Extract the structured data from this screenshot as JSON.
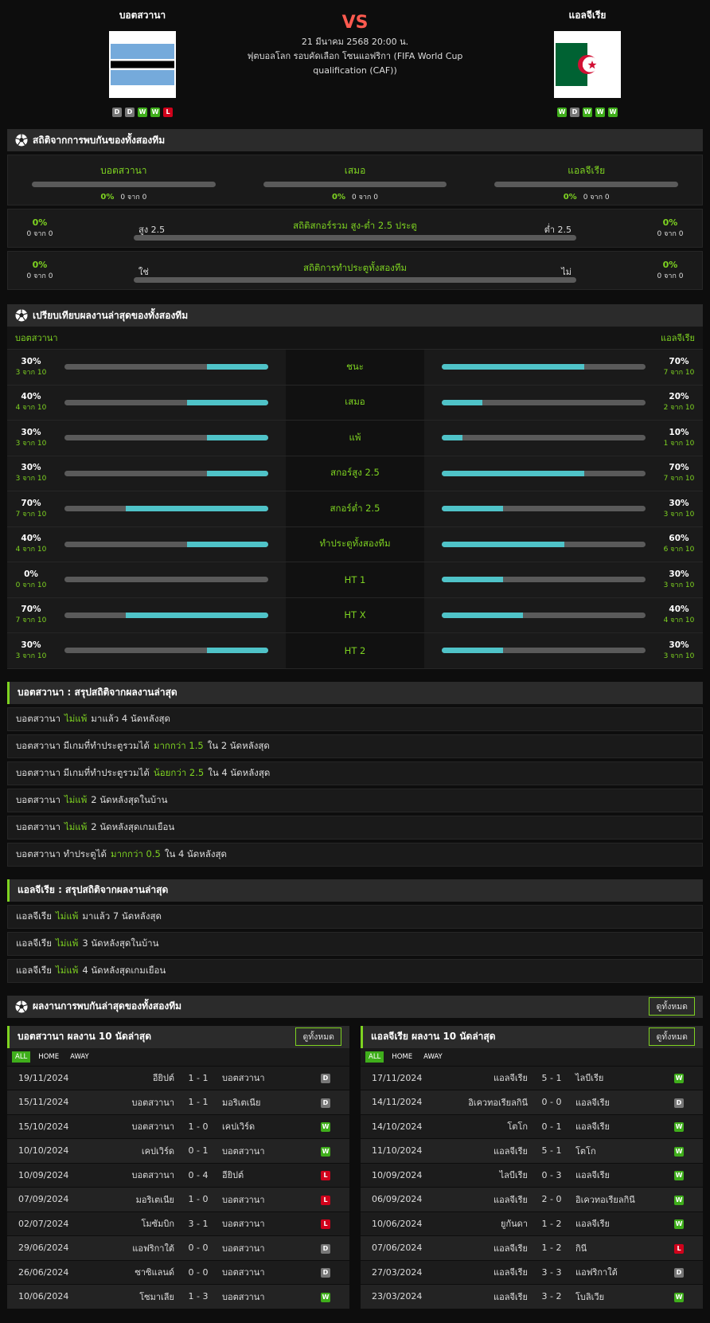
{
  "header": {
    "home": {
      "name": "บอตสวานา",
      "form": [
        "D",
        "D",
        "W",
        "W",
        "L"
      ]
    },
    "away": {
      "name": "แอลจีเรีย",
      "form": [
        "W",
        "D",
        "W",
        "W",
        "W"
      ]
    },
    "vs": "VS",
    "date": "21 มีนาคม 2568 20:00 น.",
    "competition": "ฟุตบอลโลก รอบคัดเลือก โซนแอฟริกา (FIFA World Cup qualification (CAF))"
  },
  "h2h": {
    "title": "สถิติจากการพบกันของทั้งสองทีม",
    "columns": [
      {
        "label": "บอตสวานา",
        "pct": "0%",
        "count": "0 จาก 0"
      },
      {
        "label": "เสมอ",
        "pct": "0%",
        "count": "0 จาก 0"
      },
      {
        "label": "แอลจีเรีย",
        "pct": "0%",
        "count": "0 จาก 0"
      }
    ],
    "rows": [
      {
        "title": "สถิติสกอร์รวม สูง-ต่ำ 2.5 ประตู",
        "left_label": "สูง 2.5",
        "right_label": "ต่ำ 2.5",
        "left_pct": "0%",
        "left_count": "0 จาก 0",
        "right_pct": "0%",
        "right_count": "0 จาก 0"
      },
      {
        "title": "สถิติการทำประตูทั้งสองทีม",
        "left_label": "ใช่",
        "right_label": "ไม่",
        "left_pct": "0%",
        "left_count": "0 จาก 0",
        "right_pct": "0%",
        "right_count": "0 จาก 0"
      }
    ]
  },
  "compare": {
    "title": "เปรียบเทียบผลงานล่าสุดของทั้งสองทีม",
    "home": "บอตสวานา",
    "away": "แอลจีเรีย",
    "rows": [
      {
        "label": "ชนะ",
        "home_pct": "30%",
        "home_count": "3 จาก 10",
        "away_pct": "70%",
        "away_count": "7 จาก 10"
      },
      {
        "label": "เสมอ",
        "home_pct": "40%",
        "home_count": "4 จาก 10",
        "away_pct": "20%",
        "away_count": "2 จาก 10"
      },
      {
        "label": "แพ้",
        "home_pct": "30%",
        "home_count": "3 จาก 10",
        "away_pct": "10%",
        "away_count": "1 จาก 10"
      },
      {
        "label": "สกอร์สูง 2.5",
        "home_pct": "30%",
        "home_count": "3 จาก 10",
        "away_pct": "70%",
        "away_count": "7 จาก 10"
      },
      {
        "label": "สกอร์ต่ำ 2.5",
        "home_pct": "70%",
        "home_count": "7 จาก 10",
        "away_pct": "30%",
        "away_count": "3 จาก 10"
      },
      {
        "label": "ทำประตูทั้งสองทีม",
        "home_pct": "40%",
        "home_count": "4 จาก 10",
        "away_pct": "60%",
        "away_count": "6 จาก 10"
      },
      {
        "label": "HT 1",
        "home_pct": "0%",
        "home_count": "0 จาก 10",
        "away_pct": "30%",
        "away_count": "3 จาก 10"
      },
      {
        "label": "HT X",
        "home_pct": "70%",
        "home_count": "7 จาก 10",
        "away_pct": "40%",
        "away_count": "4 จาก 10"
      },
      {
        "label": "HT 2",
        "home_pct": "30%",
        "home_count": "3 จาก 10",
        "away_pct": "30%",
        "away_count": "3 จาก 10"
      }
    ]
  },
  "summaries": [
    {
      "title": "บอตสวานา : สรุปสถิติจากผลงานล่าสุด",
      "items": [
        [
          "บอตสวานา",
          "ไม่แพ้",
          "มาแล้ว 4 นัดหลังสุด"
        ],
        [
          "บอตสวานา มีเกมที่ทำประตูรวมได้",
          "มากกว่า 1.5",
          "ใน 2 นัดหลังสุด"
        ],
        [
          "บอตสวานา มีเกมที่ทำประตูรวมได้",
          "น้อยกว่า 2.5",
          "ใน 4 นัดหลังสุด"
        ],
        [
          "บอตสวานา",
          "ไม่แพ้",
          "2 นัดหลังสุดในบ้าน"
        ],
        [
          "บอตสวานา",
          "ไม่แพ้",
          "2 นัดหลังสุดเกมเยือน"
        ],
        [
          "บอตสวานา ทำประตูได้",
          "มากกว่า 0.5",
          "ใน 4 นัดหลังสุด"
        ]
      ]
    },
    {
      "title": "แอลจีเรีย : สรุปสถิติจากผลงานล่าสุด",
      "items": [
        [
          "แอลจีเรีย",
          "ไม่แพ้",
          "มาแล้ว 7 นัดหลังสุด"
        ],
        [
          "แอลจีเรีย",
          "ไม่แพ้",
          "3 นัดหลังสุดในบ้าน"
        ],
        [
          "แอลจีเรีย",
          "ไม่แพ้",
          "4 นัดหลังสุดเกมเยือน"
        ]
      ]
    }
  ],
  "recent": {
    "title": "ผลงานการพบกันล่าสุดของทั้งสองทีม",
    "button": "ดูทั้งหมด"
  },
  "panels": [
    {
      "title": "บอตสวานา ผลงาน 10 นัดล่าสุด",
      "button": "ดูทั้งหมด",
      "tabs": [
        "ALL",
        "HOME",
        "AWAY"
      ],
      "matches": [
        [
          "19/11/2024",
          "อียิปต์",
          "1 - 1",
          "บอตสวานา",
          "D"
        ],
        [
          "15/11/2024",
          "บอตสวานา",
          "1 - 1",
          "มอริเตเนีย",
          "D"
        ],
        [
          "15/10/2024",
          "บอตสวานา",
          "1 - 0",
          "เคปเวิร์ด",
          "W"
        ],
        [
          "10/10/2024",
          "เคปเวิร์ด",
          "0 - 1",
          "บอตสวานา",
          "W"
        ],
        [
          "10/09/2024",
          "บอตสวานา",
          "0 - 4",
          "อียิปต์",
          "L"
        ],
        [
          "07/09/2024",
          "มอริเตเนีย",
          "1 - 0",
          "บอตสวานา",
          "L"
        ],
        [
          "02/07/2024",
          "โมซัมบิก",
          "3 - 1",
          "บอตสวานา",
          "L"
        ],
        [
          "29/06/2024",
          "แอฟริกาใต้",
          "0 - 0",
          "บอตสวานา",
          "D"
        ],
        [
          "26/06/2024",
          "ซาซิแลนด์",
          "0 - 0",
          "บอตสวานา",
          "D"
        ],
        [
          "10/06/2024",
          "โซมาเลีย",
          "1 - 3",
          "บอตสวานา",
          "W"
        ]
      ]
    },
    {
      "title": "แอลจีเรีย ผลงาน 10 นัดล่าสุด",
      "button": "ดูทั้งหมด",
      "tabs": [
        "ALL",
        "HOME",
        "AWAY"
      ],
      "matches": [
        [
          "17/11/2024",
          "แอลจีเรีย",
          "5 - 1",
          "ไลบีเรีย",
          "W"
        ],
        [
          "14/11/2024",
          "อิเควทอเรียลกินี",
          "0 - 0",
          "แอลจีเรีย",
          "D"
        ],
        [
          "14/10/2024",
          "โตโก",
          "0 - 1",
          "แอลจีเรีย",
          "W"
        ],
        [
          "11/10/2024",
          "แอลจีเรีย",
          "5 - 1",
          "โตโก",
          "W"
        ],
        [
          "10/09/2024",
          "ไลบีเรีย",
          "0 - 3",
          "แอลจีเรีย",
          "W"
        ],
        [
          "06/09/2024",
          "แอลจีเรีย",
          "2 - 0",
          "อิเควทอเรียลกินี",
          "W"
        ],
        [
          "10/06/2024",
          "ยูกันดา",
          "1 - 2",
          "แอลจีเรีย",
          "W"
        ],
        [
          "07/06/2024",
          "แอลจีเรีย",
          "1 - 2",
          "กินี",
          "L"
        ],
        [
          "27/03/2024",
          "แอลจีเรีย",
          "3 - 3",
          "แอฟริกาใต้",
          "D"
        ],
        [
          "23/03/2024",
          "แอลจีเรีย",
          "3 - 2",
          "โบลิเวีย",
          "W"
        ]
      ]
    }
  ]
}
